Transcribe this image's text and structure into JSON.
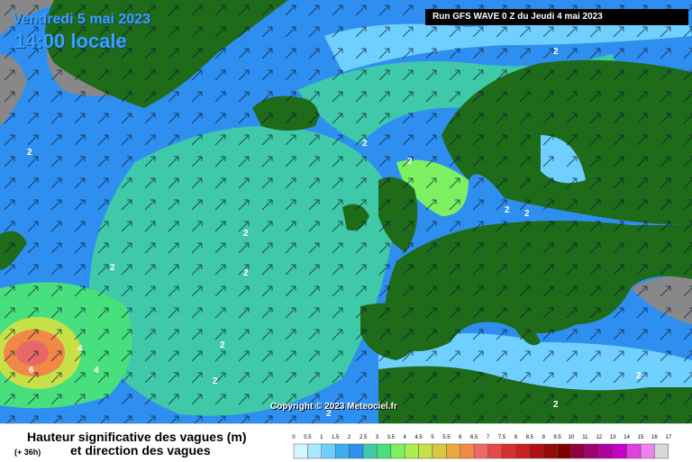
{
  "header": {
    "date": "Vendredi 5 mai 2023",
    "time": "14:00 locale",
    "run": "Run GFS WAVE 0 Z du Jeudi 4 mai 2023"
  },
  "copyright": "Copyright © 2023 Meteociel.fr",
  "legend": {
    "title": "Hauteur significative des vagues (m)",
    "subtitle": "et direction des vagues",
    "lead": "(+ 36h)",
    "scale_labels": [
      "0",
      "0.5",
      "1",
      "1.5",
      "2",
      "2.5",
      "3",
      "3.5",
      "4",
      "4.5",
      "5",
      "5.5",
      "6",
      "6.5",
      "7",
      "7.5",
      "8",
      "8.5",
      "9",
      "9.5",
      "10",
      "11",
      "12",
      "13",
      "14",
      "15",
      "16",
      "17"
    ],
    "scale_colors": [
      "#d6f6ff",
      "#a8e8ff",
      "#6fd0ff",
      "#3aaef0",
      "#2f8ff0",
      "#3fc9a8",
      "#47e07c",
      "#7cf060",
      "#a8f050",
      "#c8e048",
      "#d8c840",
      "#e8a840",
      "#f08848",
      "#f06868",
      "#e84848",
      "#d83030",
      "#c82020",
      "#b01010",
      "#980808",
      "#800000",
      "#900040",
      "#a00070",
      "#b000a0",
      "#c800c8",
      "#e040e0",
      "#f080f0",
      "#d8d8d8"
    ],
    "ocean_color": "#2f8ff0",
    "land_color": "#1e6b1a",
    "nodata_color": "#888888"
  },
  "map": {
    "contour_labels": [
      "2",
      "2",
      "2",
      "2",
      "2",
      "2",
      "2",
      "2",
      "2",
      "2",
      "2",
      "2",
      "4",
      "4",
      "6",
      "2",
      "2"
    ]
  }
}
